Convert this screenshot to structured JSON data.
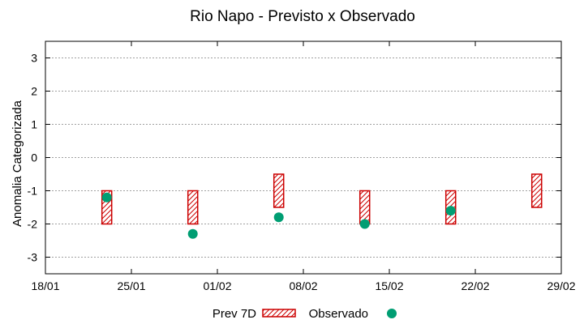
{
  "chart_data": {
    "type": "scatter",
    "title": "Rio Napo - Previsto x Observado",
    "xlabel": "",
    "ylabel": "Anomalia Categorizada",
    "x_ticks": [
      "18/01",
      "25/01",
      "01/02",
      "08/02",
      "15/02",
      "22/02",
      "29/02"
    ],
    "x_range_days": [
      0,
      42
    ],
    "ylim": [
      -3.5,
      3.5
    ],
    "y_ticks": [
      3,
      2,
      1,
      0,
      -1,
      -2,
      -3
    ],
    "grid": true,
    "legend_position": "bottom-center",
    "series": [
      {
        "name": "Prev 7D",
        "kind": "range-box",
        "color": "#cc0000",
        "points": [
          {
            "day": 5,
            "low": -2,
            "high": -1
          },
          {
            "day": 12,
            "low": -2,
            "high": -1
          },
          {
            "day": 19,
            "low": -1.5,
            "high": -0.5
          },
          {
            "day": 26,
            "low": -2,
            "high": -1
          },
          {
            "day": 33,
            "low": -2,
            "high": -1
          },
          {
            "day": 40,
            "low": -1.5,
            "high": -0.5
          }
        ]
      },
      {
        "name": "Observado",
        "kind": "points",
        "color": "#009e73",
        "points": [
          {
            "day": 5,
            "value": -1.2
          },
          {
            "day": 12,
            "value": -2.3
          },
          {
            "day": 19,
            "value": -1.8
          },
          {
            "day": 26,
            "value": -2.0
          },
          {
            "day": 33,
            "value": -1.6
          }
        ]
      }
    ]
  }
}
